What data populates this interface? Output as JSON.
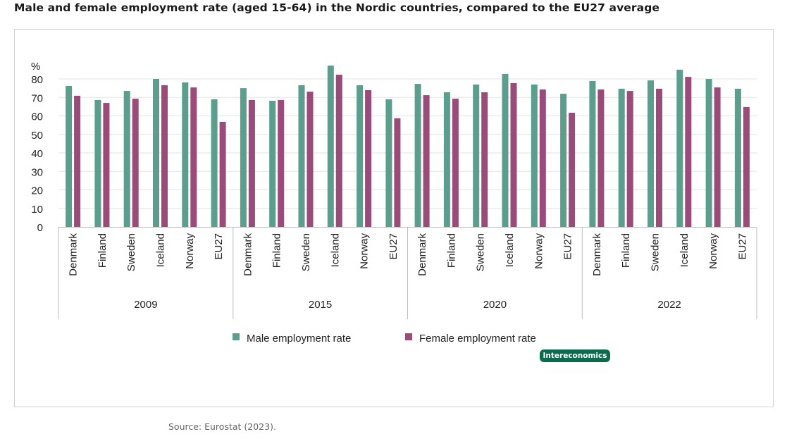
{
  "title": "Male and female employment rate (aged 15-64) in the Nordic countries, compared to the EU27 average",
  "source": "Source: Eurostat (2023).",
  "logo": "Intereconomics",
  "colors": {
    "male": "#5a9e8e",
    "female": "#9b4a7a",
    "grid": "#e3e3e3",
    "axis": "#bdbdbd",
    "text": "#222222"
  },
  "chart_data": {
    "type": "bar",
    "title": "Male and female employment rate (aged 15-64) in the Nordic countries, compared to the EU27 average",
    "ylabel": "%",
    "xlabel": "",
    "ylim": [
      0,
      80
    ],
    "yticks": [
      0,
      10,
      20,
      30,
      40,
      50,
      60,
      70,
      80
    ],
    "grid": true,
    "legend": "bottom-center",
    "groups": [
      "2009",
      "2015",
      "2020",
      "2022"
    ],
    "categories": [
      "Denmark",
      "Finland",
      "Sweden",
      "Iceland",
      "Norway",
      "EU27"
    ],
    "series": [
      {
        "name": "Male employment rate",
        "values": [
          [
            76.2,
            68.6,
            73.5,
            80.0,
            78.1,
            69.0
          ],
          [
            75.0,
            68.2,
            76.6,
            87.2,
            76.6,
            69.0
          ],
          [
            77.3,
            72.8,
            77.0,
            82.7,
            77.0,
            72.0
          ],
          [
            78.9,
            74.7,
            79.2,
            85.0,
            80.0,
            74.7
          ]
        ]
      },
      {
        "name": "Female employment rate",
        "values": [
          [
            70.9,
            67.0,
            69.3,
            76.6,
            75.4,
            56.8
          ],
          [
            68.6,
            68.6,
            73.1,
            82.3,
            73.9,
            58.7
          ],
          [
            71.2,
            69.3,
            72.8,
            77.7,
            74.3,
            61.7
          ],
          [
            74.3,
            73.5,
            74.7,
            81.1,
            75.4,
            64.8
          ]
        ]
      }
    ]
  }
}
